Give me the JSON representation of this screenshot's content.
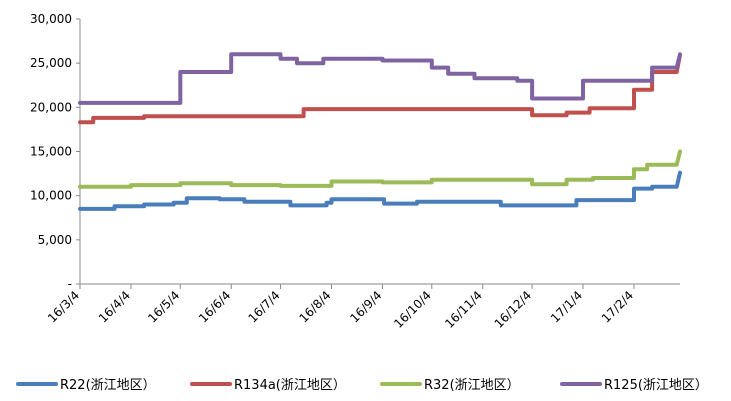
{
  "chart_data": {
    "type": "line",
    "title": "",
    "xlabel": "",
    "ylabel": "",
    "ylim": [
      0,
      30000
    ],
    "y_ticks": [
      0,
      5000,
      10000,
      15000,
      20000,
      25000,
      30000
    ],
    "y_tick_labels": [
      "-",
      "5,000",
      "10,000",
      "15,000",
      "20,000",
      "25,000",
      "30,000"
    ],
    "x_range": [
      "2016-03-04",
      "2017-03-04"
    ],
    "x_ticks": [
      "2016-03-04",
      "2016-04-04",
      "2016-05-04",
      "2016-06-04",
      "2016-07-04",
      "2016-08-04",
      "2016-09-04",
      "2016-10-04",
      "2016-11-04",
      "2016-12-04",
      "2017-01-04",
      "2017-02-04"
    ],
    "x_tick_labels": [
      "16/3/4",
      "16/4/4",
      "16/5/4",
      "16/6/4",
      "16/7/4",
      "16/8/4",
      "16/9/4",
      "16/10/4",
      "16/11/4",
      "16/12/4",
      "17/1/4",
      "17/2/4"
    ],
    "grid": false,
    "legend_position": "bottom",
    "series": [
      {
        "name": "R22(浙江地区）",
        "color": "#4a7ebb",
        "points": [
          [
            "2016-03-04",
            8500
          ],
          [
            "2016-03-25",
            8500
          ],
          [
            "2016-03-25",
            8800
          ],
          [
            "2016-04-12",
            8800
          ],
          [
            "2016-04-12",
            9000
          ],
          [
            "2016-04-30",
            9000
          ],
          [
            "2016-04-30",
            9200
          ],
          [
            "2016-05-08",
            9200
          ],
          [
            "2016-05-08",
            9700
          ],
          [
            "2016-05-28",
            9700
          ],
          [
            "2016-05-28",
            9600
          ],
          [
            "2016-06-12",
            9600
          ],
          [
            "2016-06-12",
            9300
          ],
          [
            "2016-07-10",
            9300
          ],
          [
            "2016-07-10",
            8900
          ],
          [
            "2016-08-01",
            8900
          ],
          [
            "2016-08-01",
            9200
          ],
          [
            "2016-08-04",
            9200
          ],
          [
            "2016-08-04",
            9600
          ],
          [
            "2016-09-05",
            9600
          ],
          [
            "2016-09-05",
            9100
          ],
          [
            "2016-09-25",
            9100
          ],
          [
            "2016-09-25",
            9300
          ],
          [
            "2016-11-15",
            9300
          ],
          [
            "2016-11-15",
            8900
          ],
          [
            "2016-12-31",
            8900
          ],
          [
            "2016-12-31",
            9500
          ],
          [
            "2017-02-04",
            9500
          ],
          [
            "2017-02-04",
            10800
          ],
          [
            "2017-02-15",
            10800
          ],
          [
            "2017-02-15",
            11000
          ],
          [
            "2017-03-02",
            11000
          ],
          [
            "2017-03-04",
            12600
          ]
        ]
      },
      {
        "name": "R134a(浙江地区）",
        "color": "#c0504d",
        "points": [
          [
            "2016-03-04",
            18300
          ],
          [
            "2016-03-12",
            18300
          ],
          [
            "2016-03-12",
            18800
          ],
          [
            "2016-04-12",
            18800
          ],
          [
            "2016-04-12",
            19000
          ],
          [
            "2016-07-18",
            19000
          ],
          [
            "2016-07-18",
            19800
          ],
          [
            "2016-12-04",
            19800
          ],
          [
            "2016-12-04",
            19100
          ],
          [
            "2016-12-25",
            19100
          ],
          [
            "2016-12-25",
            19400
          ],
          [
            "2017-01-08",
            19400
          ],
          [
            "2017-01-08",
            19900
          ],
          [
            "2017-02-04",
            19900
          ],
          [
            "2017-02-04",
            22000
          ],
          [
            "2017-02-15",
            22000
          ],
          [
            "2017-02-15",
            24000
          ],
          [
            "2017-03-02",
            24000
          ],
          [
            "2017-03-04",
            25900
          ]
        ]
      },
      {
        "name": "R32(浙江地区）",
        "color": "#9bbb59",
        "points": [
          [
            "2016-03-04",
            11000
          ],
          [
            "2016-04-04",
            11000
          ],
          [
            "2016-04-04",
            11200
          ],
          [
            "2016-05-04",
            11200
          ],
          [
            "2016-05-04",
            11400
          ],
          [
            "2016-06-04",
            11400
          ],
          [
            "2016-06-04",
            11200
          ],
          [
            "2016-07-04",
            11200
          ],
          [
            "2016-07-04",
            11100
          ],
          [
            "2016-08-04",
            11100
          ],
          [
            "2016-08-04",
            11600
          ],
          [
            "2016-09-04",
            11600
          ],
          [
            "2016-09-04",
            11500
          ],
          [
            "2016-10-04",
            11500
          ],
          [
            "2016-10-04",
            11800
          ],
          [
            "2016-12-04",
            11800
          ],
          [
            "2016-12-04",
            11300
          ],
          [
            "2016-12-25",
            11300
          ],
          [
            "2016-12-25",
            11800
          ],
          [
            "2017-01-10",
            11800
          ],
          [
            "2017-01-10",
            12000
          ],
          [
            "2017-02-04",
            12000
          ],
          [
            "2017-02-04",
            13000
          ],
          [
            "2017-02-12",
            13000
          ],
          [
            "2017-02-12",
            13500
          ],
          [
            "2017-03-02",
            13500
          ],
          [
            "2017-03-04",
            15000
          ]
        ]
      },
      {
        "name": "R125(浙江地区）",
        "color": "#8064a2",
        "points": [
          [
            "2016-03-04",
            20500
          ],
          [
            "2016-05-04",
            20500
          ],
          [
            "2016-05-04",
            24000
          ],
          [
            "2016-06-04",
            24000
          ],
          [
            "2016-06-04",
            26000
          ],
          [
            "2016-07-04",
            26000
          ],
          [
            "2016-07-04",
            25500
          ],
          [
            "2016-07-14",
            25500
          ],
          [
            "2016-07-14",
            25000
          ],
          [
            "2016-07-30",
            25000
          ],
          [
            "2016-07-30",
            25500
          ],
          [
            "2016-09-04",
            25500
          ],
          [
            "2016-09-04",
            25300
          ],
          [
            "2016-10-04",
            25300
          ],
          [
            "2016-10-04",
            24500
          ],
          [
            "2016-10-14",
            24500
          ],
          [
            "2016-10-14",
            23800
          ],
          [
            "2016-10-30",
            23800
          ],
          [
            "2016-10-30",
            23300
          ],
          [
            "2016-11-25",
            23300
          ],
          [
            "2016-11-25",
            23000
          ],
          [
            "2016-12-04",
            23000
          ],
          [
            "2016-12-04",
            21000
          ],
          [
            "2017-01-04",
            21000
          ],
          [
            "2017-01-04",
            23000
          ],
          [
            "2017-02-15",
            23000
          ],
          [
            "2017-02-15",
            24500
          ],
          [
            "2017-03-02",
            24500
          ],
          [
            "2017-03-04",
            26000
          ]
        ]
      }
    ]
  }
}
